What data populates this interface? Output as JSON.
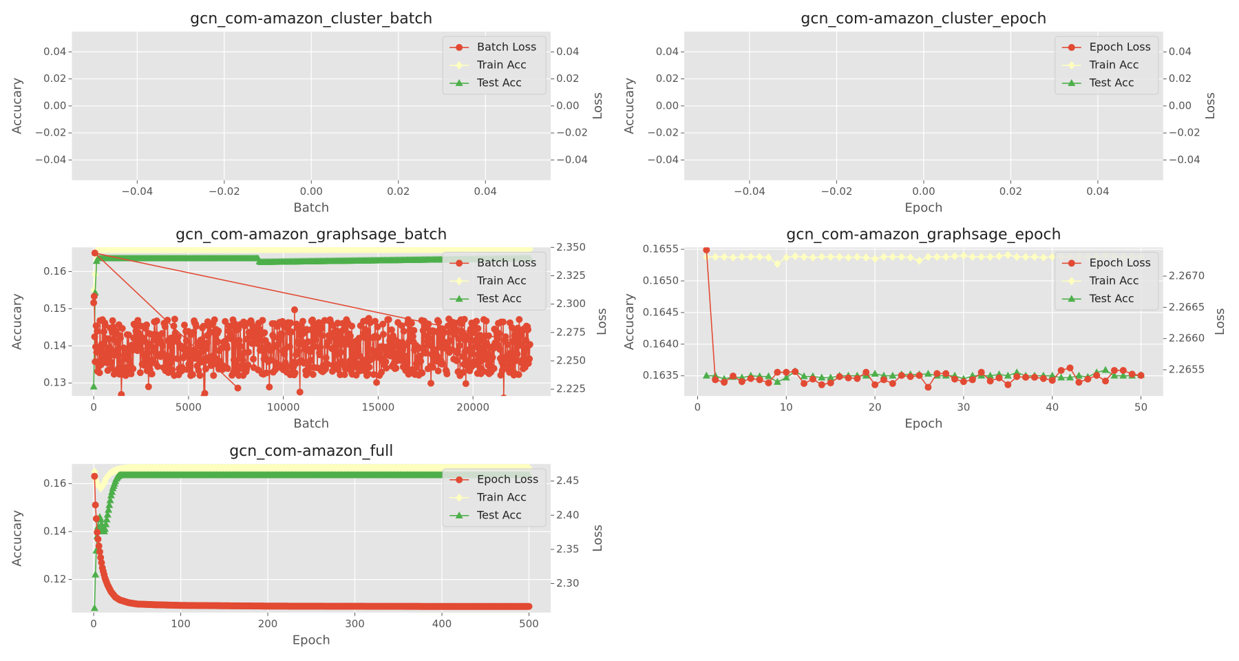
{
  "figure": {
    "panels": [
      {
        "title": "gcn_com-amazon_cluster_batch",
        "xlabel": "Batch",
        "ylabel": "Accucary",
        "y2label": "Loss"
      },
      {
        "title": "gcn_com-amazon_cluster_epoch",
        "xlabel": "Epoch",
        "ylabel": "Accucary",
        "y2label": "Loss"
      },
      {
        "title": "gcn_com-amazon_graphsage_batch",
        "xlabel": "Batch",
        "ylabel": "Accucary",
        "y2label": "Loss"
      },
      {
        "title": "gcn_com-amazon_graphsage_epoch",
        "xlabel": "Epoch",
        "ylabel": "Accucary",
        "y2label": "Loss"
      },
      {
        "title": "gcn_com-amazon_full",
        "xlabel": "Epoch",
        "ylabel": "Accucary",
        "y2label": "Loss"
      }
    ]
  },
  "colors": {
    "loss": "#e24a33",
    "train": "#ffffbf",
    "test": "#4daf4a",
    "panel_bg": "#e5e5e5",
    "grid": "#ffffff",
    "tick": "#555555",
    "text": "#222222"
  },
  "chart_data": [
    {
      "type": "line",
      "title": "gcn_com-amazon_cluster_batch",
      "xlabel": "Batch",
      "ylabel": "Accucary",
      "y2label": "Loss",
      "xlim": [
        -0.055,
        0.055
      ],
      "ylim": [
        -0.055,
        0.055
      ],
      "y2lim": [
        -0.055,
        0.055
      ],
      "xticks": [
        "−0.04",
        "−0.02",
        "0.00",
        "0.02",
        "0.04"
      ],
      "xtick_values": [
        -0.04,
        -0.02,
        0,
        0.02,
        0.04
      ],
      "yticks": [
        "−0.04",
        "−0.02",
        "0.00",
        "0.02",
        "0.04"
      ],
      "ytick_values": [
        -0.04,
        -0.02,
        0,
        0.02,
        0.04
      ],
      "y2ticks": [
        "−0.04",
        "−0.02",
        "0.00",
        "0.02",
        "0.04"
      ],
      "y2tick_values": [
        -0.04,
        -0.02,
        0,
        0.02,
        0.04
      ],
      "legend": [
        "Batch Loss",
        "Train Acc",
        "Test Acc"
      ],
      "legend_loc": "upper right",
      "grid": true,
      "series": []
    },
    {
      "type": "line",
      "title": "gcn_com-amazon_cluster_epoch",
      "xlabel": "Epoch",
      "ylabel": "Accucary",
      "y2label": "Loss",
      "xlim": [
        -0.055,
        0.055
      ],
      "ylim": [
        -0.055,
        0.055
      ],
      "y2lim": [
        -0.055,
        0.055
      ],
      "xticks": [
        "−0.04",
        "−0.02",
        "0.00",
        "0.02",
        "0.04"
      ],
      "xtick_values": [
        -0.04,
        -0.02,
        0,
        0.02,
        0.04
      ],
      "yticks": [
        "−0.04",
        "−0.02",
        "0.00",
        "0.02",
        "0.04"
      ],
      "ytick_values": [
        -0.04,
        -0.02,
        0,
        0.02,
        0.04
      ],
      "y2ticks": [
        "−0.04",
        "−0.02",
        "0.00",
        "0.02",
        "0.04"
      ],
      "y2tick_values": [
        -0.04,
        -0.02,
        0,
        0.02,
        0.04
      ],
      "legend": [
        "Epoch Loss",
        "Train Acc",
        "Test Acc"
      ],
      "legend_loc": "upper right",
      "grid": true,
      "series": []
    },
    {
      "type": "line",
      "title": "gcn_com-amazon_graphsage_batch",
      "xlabel": "Batch",
      "ylabel": "Accucary",
      "y2label": "Loss",
      "xlim": [
        -1150,
        24100
      ],
      "ylim": [
        0.1265,
        0.1665
      ],
      "y2lim": [
        2.219,
        2.35
      ],
      "xticks": [
        "0",
        "5000",
        "10000",
        "15000",
        "20000"
      ],
      "xtick_values": [
        0,
        5000,
        10000,
        15000,
        20000
      ],
      "yticks": [
        "0.13",
        "0.14",
        "0.15",
        "0.16"
      ],
      "ytick_values": [
        0.13,
        0.14,
        0.15,
        0.16
      ],
      "y2ticks": [
        "2.225",
        "2.250",
        "2.275",
        "2.300",
        "2.325",
        "2.350"
      ],
      "y2tick_values": [
        2.225,
        2.25,
        2.275,
        2.3,
        2.325,
        2.35
      ],
      "legend": [
        "Batch Loss",
        "Train Acc",
        "Test Acc"
      ],
      "legend_loc": "upper right",
      "grid": true,
      "series": [
        {
          "name": "Batch Loss",
          "axis": "y2",
          "marker": "circle",
          "description": "noisy around 2.26",
          "x": [
            0,
            60,
            150,
            300,
            500,
            1000,
            2000,
            4000,
            6000,
            7600,
            8000,
            10000,
            11000,
            12000,
            14000,
            16000,
            18000,
            19500,
            20000,
            21000,
            22500,
            23000
          ],
          "values": [
            2.262,
            2.345,
            2.31,
            2.26,
            2.262,
            2.27,
            2.258,
            2.27,
            2.26,
            2.226,
            2.262,
            2.27,
            2.26,
            2.29,
            2.262,
            2.27,
            2.26,
            2.23,
            2.29,
            2.265,
            2.28,
            2.26
          ],
          "band": [
            2.235,
            2.295
          ]
        },
        {
          "name": "Train Acc",
          "axis": "y",
          "marker": "diamond",
          "x": [
            0,
            200,
            23000
          ],
          "values": [
            0.155,
            0.166,
            0.166
          ]
        },
        {
          "name": "Test Acc",
          "axis": "y",
          "marker": "triangle",
          "x": [
            0,
            100,
            200,
            8700,
            8750,
            23000
          ],
          "values": [
            0.129,
            0.162,
            0.1635,
            0.1635,
            0.1625,
            0.1635
          ]
        }
      ]
    },
    {
      "type": "line",
      "title": "gcn_com-amazon_graphsage_epoch",
      "xlabel": "Epoch",
      "ylabel": "Accucary",
      "y2label": "Loss",
      "xlim": [
        -1.5,
        52.5
      ],
      "ylim": [
        0.16318,
        0.16553
      ],
      "y2lim": [
        2.26508,
        2.26746
      ],
      "xticks": [
        "0",
        "10",
        "20",
        "30",
        "40",
        "50"
      ],
      "xtick_values": [
        0,
        10,
        20,
        30,
        40,
        50
      ],
      "yticks": [
        "0.1635",
        "0.1640",
        "0.1645",
        "0.1650",
        "0.1655"
      ],
      "ytick_values": [
        0.1635,
        0.164,
        0.1645,
        0.165,
        0.1655
      ],
      "y2ticks": [
        "2.2655",
        "2.2660",
        "2.2665",
        "2.2670"
      ],
      "y2tick_values": [
        2.2655,
        2.266,
        2.2665,
        2.267
      ],
      "legend": [
        "Epoch Loss",
        "Train Acc",
        "Test Acc"
      ],
      "legend_loc": "upper right",
      "grid": true,
      "x": [
        1,
        2,
        3,
        4,
        5,
        6,
        7,
        8,
        9,
        10,
        11,
        12,
        13,
        14,
        15,
        16,
        17,
        18,
        19,
        20,
        21,
        22,
        23,
        24,
        25,
        26,
        27,
        28,
        29,
        30,
        31,
        32,
        33,
        34,
        35,
        36,
        37,
        38,
        39,
        40,
        41,
        42,
        43,
        44,
        45,
        46,
        47,
        48,
        49,
        50
      ],
      "series": [
        {
          "name": "Epoch Loss",
          "axis": "y2",
          "marker": "circle",
          "values": [
            2.26742,
            2.26534,
            2.2653,
            2.2654,
            2.26531,
            2.26536,
            2.26534,
            2.26529,
            2.26546,
            2.26546,
            2.26547,
            2.26528,
            2.26535,
            2.26526,
            2.26529,
            2.26539,
            2.26537,
            2.26536,
            2.26546,
            2.26526,
            2.26534,
            2.26528,
            2.26541,
            2.26539,
            2.26541,
            2.26522,
            2.26544,
            2.26544,
            2.26535,
            2.26531,
            2.26534,
            2.26546,
            2.26532,
            2.26537,
            2.26526,
            2.26539,
            2.26538,
            2.26538,
            2.26536,
            2.26533,
            2.26549,
            2.26553,
            2.2653,
            2.26535,
            2.26541,
            2.26532,
            2.26549,
            2.26549,
            2.26543,
            2.26541
          ]
        },
        {
          "name": "Train Acc",
          "axis": "y",
          "marker": "diamond",
          "values": [
            0.16538,
            0.16538,
            0.16538,
            0.16537,
            0.16538,
            0.16538,
            0.16538,
            0.16537,
            0.16527,
            0.16537,
            0.16539,
            0.16538,
            0.16537,
            0.16538,
            0.16538,
            0.16538,
            0.16537,
            0.16538,
            0.16537,
            0.16535,
            0.16538,
            0.16538,
            0.16538,
            0.16537,
            0.16532,
            0.16538,
            0.16538,
            0.16538,
            0.16539,
            0.1654,
            0.16538,
            0.16538,
            0.16538,
            0.16539,
            0.16541,
            0.16538,
            0.16538,
            0.16538,
            0.16537,
            0.16538,
            0.16538,
            0.16538,
            0.16538,
            0.16538,
            0.16538,
            0.1654,
            0.16538,
            0.16538,
            0.16538,
            0.16538
          ]
        },
        {
          "name": "Test Acc",
          "axis": "y",
          "marker": "triangle",
          "values": [
            0.1635,
            0.1635,
            0.16345,
            0.16348,
            0.16347,
            0.1635,
            0.16349,
            0.16349,
            0.1634,
            0.16347,
            0.16357,
            0.16349,
            0.16349,
            0.16347,
            0.16347,
            0.1635,
            0.1635,
            0.1635,
            0.1635,
            0.16353,
            0.1635,
            0.1635,
            0.16352,
            0.16352,
            0.16352,
            0.16353,
            0.1635,
            0.1635,
            0.1635,
            0.16345,
            0.1635,
            0.1635,
            0.1635,
            0.16352,
            0.1635,
            0.16355,
            0.1635,
            0.1635,
            0.1635,
            0.1635,
            0.16347,
            0.16347,
            0.1635,
            0.16348,
            0.16355,
            0.16359,
            0.1635,
            0.1635,
            0.1635,
            0.16351
          ]
        }
      ]
    },
    {
      "type": "line",
      "title": "gcn_com-amazon_full",
      "xlabel": "Epoch",
      "ylabel": "Accucary",
      "y2label": "Loss",
      "xlim": [
        -25,
        525
      ],
      "ylim": [
        0.1062,
        0.1682
      ],
      "y2lim": [
        2.2575,
        2.475
      ],
      "xticks": [
        "0",
        "100",
        "200",
        "300",
        "400",
        "500"
      ],
      "xtick_values": [
        0,
        100,
        200,
        300,
        400,
        500
      ],
      "yticks": [
        "0.12",
        "0.14",
        "0.16"
      ],
      "ytick_values": [
        0.12,
        0.14,
        0.16
      ],
      "y2ticks": [
        "2.30",
        "2.35",
        "2.40",
        "2.45"
      ],
      "y2tick_values": [
        2.3,
        2.35,
        2.4,
        2.45
      ],
      "legend": [
        "Epoch Loss",
        "Train Acc",
        "Test Acc"
      ],
      "legend_loc": "upper right",
      "grid": true,
      "series": [
        {
          "name": "Epoch Loss",
          "axis": "y2",
          "marker": "circle",
          "description": "exponential decay",
          "x": [
            1,
            2,
            4,
            6,
            8,
            10,
            13,
            16,
            20,
            25,
            30,
            40,
            50,
            70,
            100,
            150,
            200,
            300,
            400,
            500
          ],
          "values": [
            2.457,
            2.415,
            2.375,
            2.355,
            2.338,
            2.323,
            2.308,
            2.298,
            2.288,
            2.28,
            2.276,
            2.272,
            2.27,
            2.269,
            2.268,
            2.2675,
            2.267,
            2.2667,
            2.2665,
            2.2665
          ]
        },
        {
          "name": "Train Acc",
          "axis": "y",
          "marker": "diamond",
          "x": [
            1,
            2,
            4,
            6,
            8,
            10,
            12,
            14,
            16,
            18,
            20,
            22,
            25,
            30,
            40,
            60,
            100,
            500
          ],
          "values": [
            0.165,
            0.162,
            0.16,
            0.159,
            0.158,
            0.159,
            0.16,
            0.162,
            0.163,
            0.164,
            0.1645,
            0.165,
            0.1655,
            0.166,
            0.1665,
            0.1665,
            0.1665,
            0.1665
          ]
        },
        {
          "name": "Test Acc",
          "axis": "y",
          "marker": "triangle",
          "x": [
            1,
            2,
            3,
            4,
            5,
            6,
            7,
            8,
            9,
            10,
            11,
            12,
            13,
            14,
            15,
            16,
            17,
            18,
            19,
            20,
            22,
            24,
            26,
            28,
            30,
            40,
            500
          ],
          "values": [
            0.108,
            0.122,
            0.132,
            0.138,
            0.142,
            0.145,
            0.146,
            0.145,
            0.143,
            0.141,
            0.14,
            0.14,
            0.141,
            0.143,
            0.145,
            0.147,
            0.149,
            0.151,
            0.153,
            0.155,
            0.158,
            0.16,
            0.162,
            0.163,
            0.1635,
            0.1635,
            0.1635
          ]
        }
      ]
    }
  ]
}
